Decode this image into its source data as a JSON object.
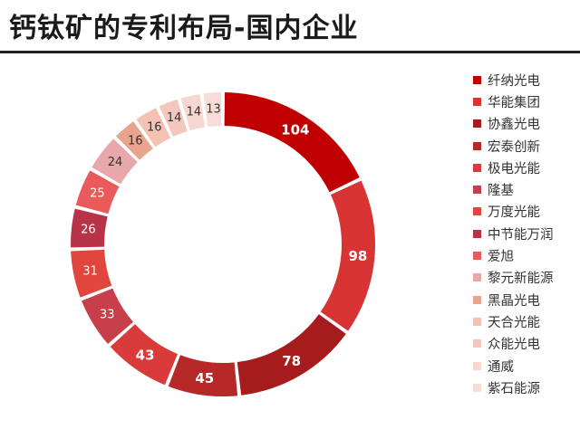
{
  "title": "钙钛矿的专利布局-国内企业",
  "chart_data": {
    "type": "pie",
    "donut": true,
    "start_angle_deg": 0,
    "direction": "clockwise",
    "legend_position": "right",
    "categories": [
      "纤纳光电",
      "华能集团",
      "协鑫光电",
      "宏泰创新",
      "极电光能",
      "隆基",
      "万度光能",
      "中节能万润",
      "爱旭",
      "黎元新能源",
      "黑晶光电",
      "天合光能",
      "众能光电",
      "通威",
      "紫石能源"
    ],
    "values": [
      104,
      98,
      78,
      45,
      43,
      33,
      31,
      26,
      25,
      24,
      16,
      16,
      14,
      14,
      13
    ],
    "colors": [
      "#c00000",
      "#d73433",
      "#a61c1c",
      "#b72828",
      "#d93b3b",
      "#c73f4a",
      "#e0463e",
      "#b83248",
      "#ea5a5a",
      "#e8a7aa",
      "#e8a48c",
      "#f3c2b2",
      "#f2c8be",
      "#f6d8d0",
      "#f7ddd7"
    ],
    "label_colors": [
      "#ffffff",
      "#ffffff",
      "#ffffff",
      "#ffffff",
      "#ffffff",
      "#ffffff",
      "#ffffff",
      "#ffffff",
      "#ffffff",
      "#333333",
      "#333333",
      "#333333",
      "#333333",
      "#333333",
      "#333333"
    ]
  }
}
